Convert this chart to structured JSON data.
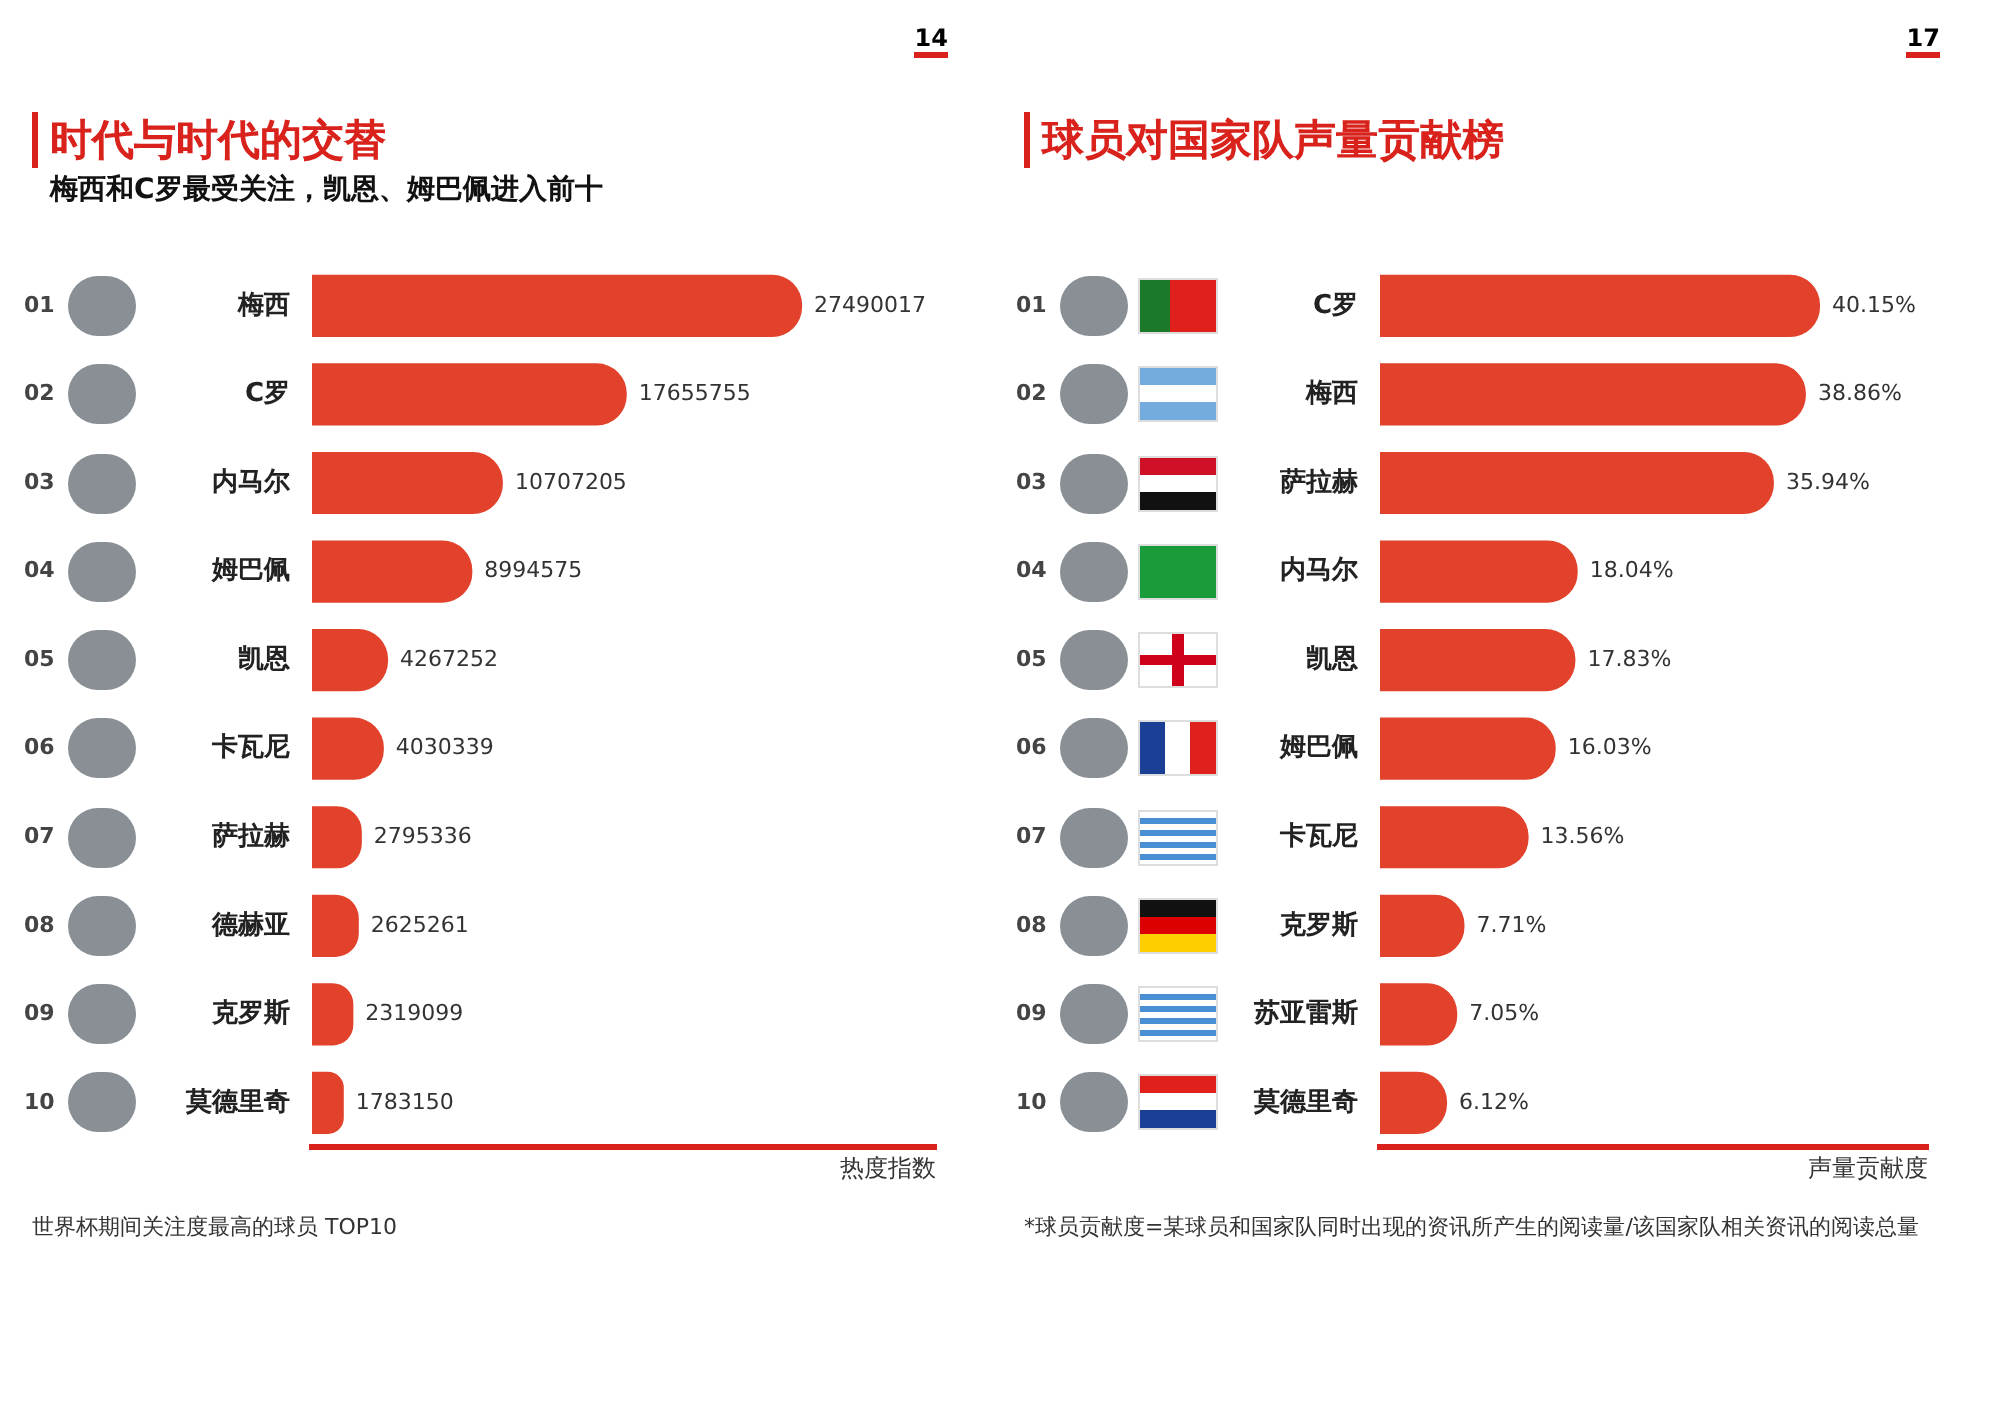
{
  "chart_data": [
    {
      "type": "bar",
      "orientation": "horizontal",
      "title": "时代与时代的交替",
      "subtitle": "梅西和C罗最受关注，凯恩、姆巴佩进入前十",
      "xlabel": "热度指数",
      "categories": [
        "梅西",
        "C罗",
        "内马尔",
        "姆巴佩",
        "凯恩",
        "卡瓦尼",
        "萨拉赫",
        "德赫亚",
        "克罗斯",
        "莫德里奇"
      ],
      "values": [
        27490017,
        17655755,
        10707205,
        8994575,
        4267252,
        4030339,
        2795336,
        2625261,
        2319099,
        1783150
      ],
      "color": "#e2412b",
      "data_labels": true,
      "grid": false,
      "legend": false,
      "annotations": [
        "14",
        "世界杯期间关注度最高的球员 TOP10",
        "01",
        "02",
        "03",
        "04",
        "05",
        "06",
        "07",
        "08",
        "09",
        "10"
      ]
    },
    {
      "type": "bar",
      "orientation": "horizontal",
      "title": "球员对国家队声量贡献榜",
      "xlabel": "声量贡献度",
      "categories": [
        "C罗",
        "梅西",
        "萨拉赫",
        "内马尔",
        "凯恩",
        "姆巴佩",
        "卡瓦尼",
        "克罗斯",
        "苏亚雷斯",
        "莫德里奇"
      ],
      "values": [
        40.15,
        38.86,
        35.94,
        18.04,
        17.83,
        16.03,
        13.56,
        7.71,
        7.05,
        6.12
      ],
      "value_labels": [
        "40.15%",
        "38.86%",
        "35.94%",
        "18.04%",
        "17.83%",
        "16.03%",
        "13.56%",
        "7.71%",
        "7.05%",
        "6.12%"
      ],
      "color": "#e2412b",
      "grid": false,
      "legend": false,
      "annotations": [
        "17",
        "*球员贡献度=某球员和国家队同时出现的资讯所产生的阅读量/该国家队相关资讯的阅读总量",
        "01",
        "02",
        "03",
        "04",
        "05",
        "06",
        "07",
        "08",
        "09",
        "10"
      ]
    }
  ]
}
